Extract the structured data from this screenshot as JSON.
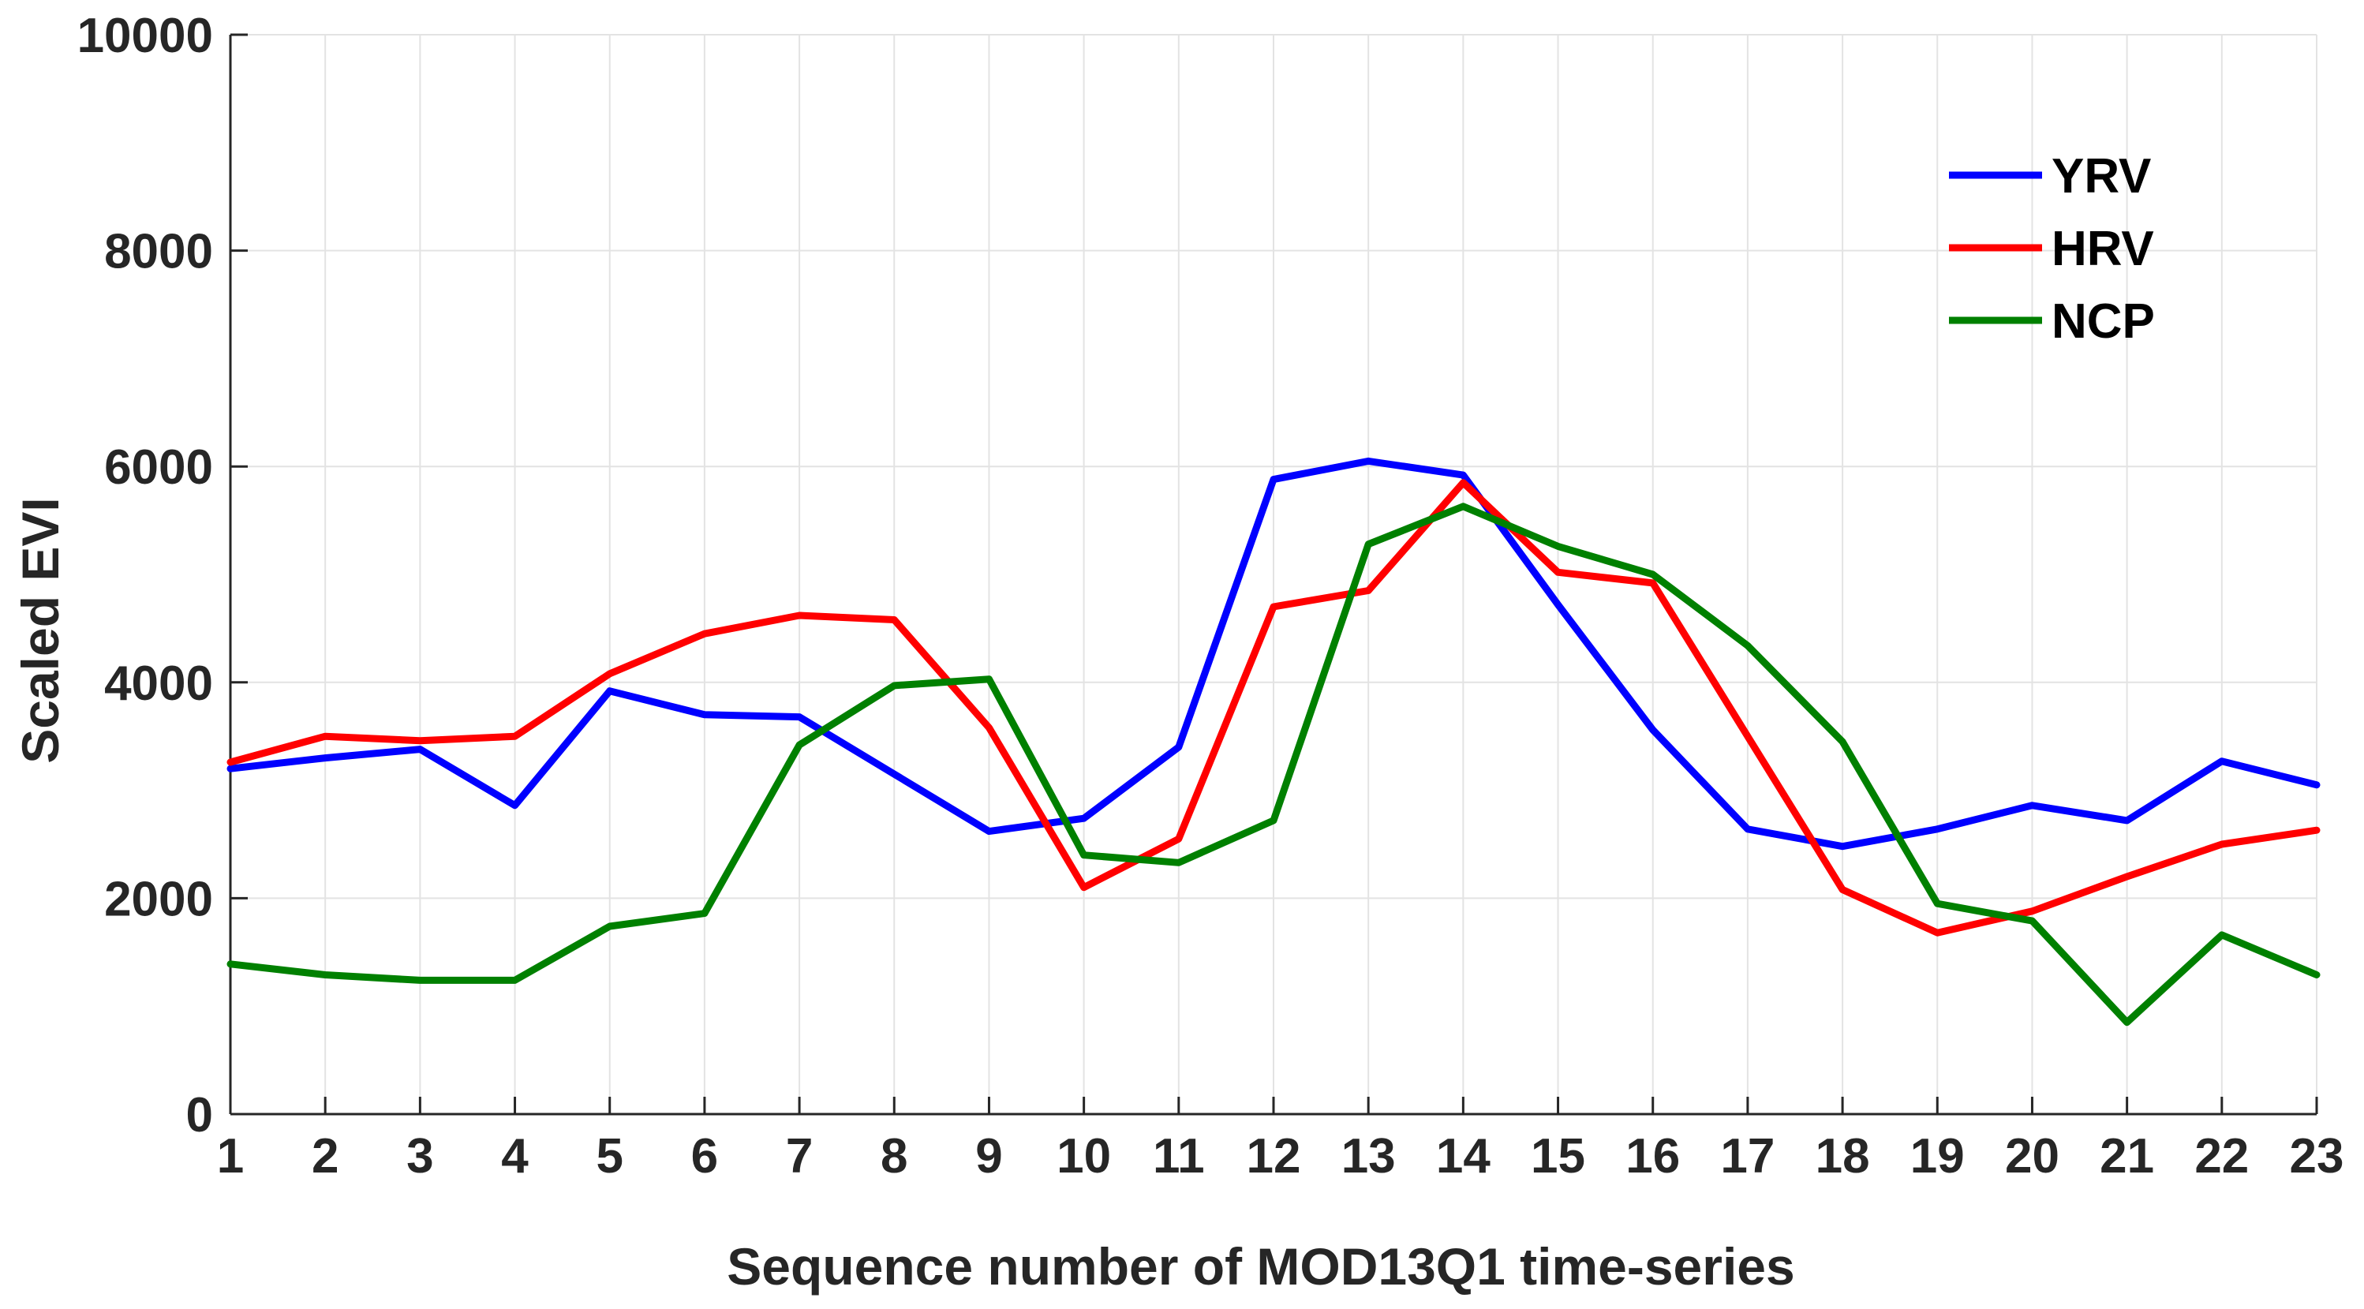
{
  "chart_data": {
    "type": "line",
    "title": "",
    "xlabel": "Sequence number of MOD13Q1 time-series",
    "ylabel": "Scaled EVI",
    "x": [
      1,
      2,
      3,
      4,
      5,
      6,
      7,
      8,
      9,
      10,
      11,
      12,
      13,
      14,
      15,
      16,
      17,
      18,
      19,
      20,
      21,
      22,
      23
    ],
    "xlim": [
      1,
      23
    ],
    "ylim": [
      0,
      10000
    ],
    "xticks": [
      "1",
      "2",
      "3",
      "4",
      "5",
      "6",
      "7",
      "8",
      "9",
      "10",
      "11",
      "12",
      "13",
      "14",
      "15",
      "16",
      "17",
      "18",
      "19",
      "20",
      "21",
      "22",
      "23"
    ],
    "yticks": [
      "0",
      "2000",
      "4000",
      "6000",
      "8000",
      "10000"
    ],
    "grid": true,
    "legend_position": "top-right",
    "series": [
      {
        "name": "YRV",
        "color": "#0000ff",
        "values": [
          3200,
          3300,
          3380,
          2860,
          3920,
          3700,
          3680,
          3150,
          2620,
          2740,
          3400,
          5880,
          6050,
          5920,
          4720,
          3560,
          2640,
          2480,
          2640,
          2860,
          2720,
          3270,
          3050
        ]
      },
      {
        "name": "HRV",
        "color": "#ff0000",
        "values": [
          3260,
          3500,
          3460,
          3500,
          4080,
          4450,
          4620,
          4580,
          3580,
          2100,
          2550,
          4700,
          4850,
          5850,
          5020,
          4920,
          3500,
          2080,
          1680,
          1880,
          2200,
          2500,
          2630
        ]
      },
      {
        "name": "NCP",
        "color": "#008000",
        "values": [
          1390,
          1290,
          1240,
          1240,
          1740,
          1860,
          3420,
          3970,
          4030,
          2400,
          2330,
          2720,
          5280,
          5630,
          5260,
          5000,
          4340,
          3450,
          1950,
          1790,
          850,
          1660,
          1290
        ]
      }
    ]
  }
}
